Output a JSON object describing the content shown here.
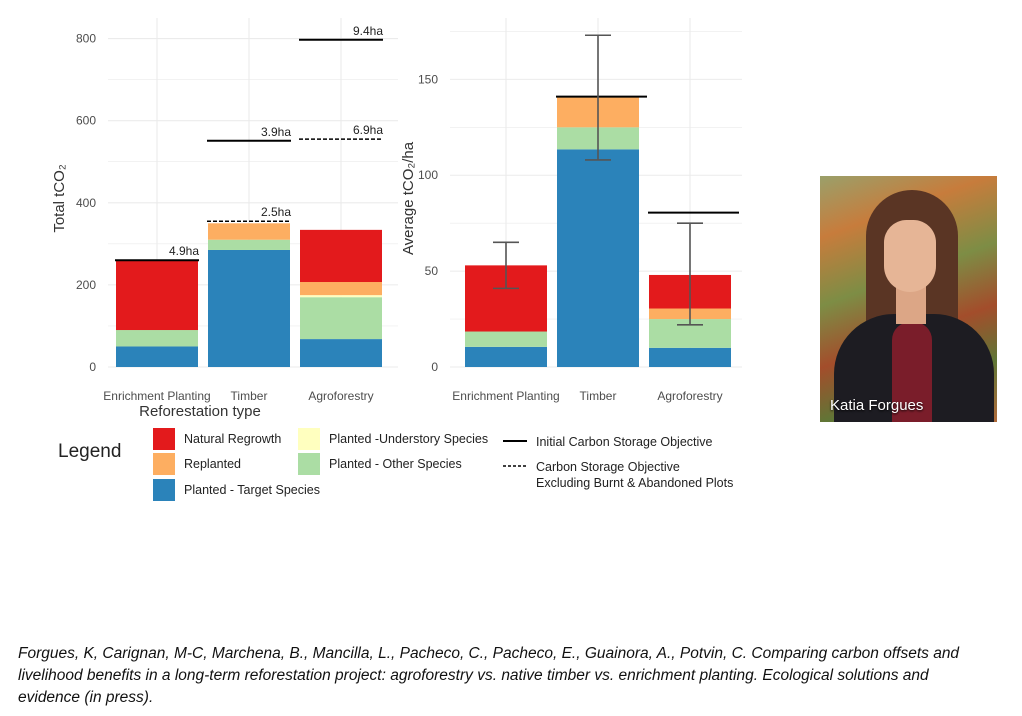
{
  "chart_data": [
    {
      "type": "bar",
      "stacked": true,
      "categories": [
        "Enrichment Planting",
        "Timber",
        "Agroforestry"
      ],
      "series": [
        {
          "name": "Planted - Target Species",
          "values": [
            50,
            285,
            68
          ]
        },
        {
          "name": "Planted - Other Species",
          "values": [
            40,
            25,
            102
          ]
        },
        {
          "name": "Planted - Understory Species",
          "values": [
            0,
            0,
            5
          ]
        },
        {
          "name": "Replanted",
          "values": [
            0,
            40,
            32
          ]
        },
        {
          "name": "Natural Regrowth",
          "values": [
            170,
            0,
            127
          ]
        }
      ],
      "objective_lines": [
        {
          "category": "Enrichment Planting",
          "style": "solid",
          "value": 260,
          "label": "4.9ha"
        },
        {
          "category": "Timber",
          "style": "solid",
          "value": 551,
          "label": "3.9ha"
        },
        {
          "category": "Timber",
          "style": "dashed",
          "value": 355,
          "label": "2.5ha"
        },
        {
          "category": "Agroforestry",
          "style": "solid",
          "value": 797,
          "label": "9.4ha"
        },
        {
          "category": "Agroforestry",
          "style": "dashed",
          "value": 555,
          "label": "6.9ha"
        }
      ],
      "xlabel": "Reforestation type",
      "ylabel": "Total tCO₂",
      "ylim": [
        0,
        850
      ],
      "yticks": [
        0,
        200,
        400,
        600,
        800
      ],
      "grid": true
    },
    {
      "type": "bar",
      "stacked": true,
      "categories": [
        "Enrichment Planting",
        "Timber",
        "Agroforestry"
      ],
      "series": [
        {
          "name": "Planted - Target Species",
          "values": [
            10.5,
            113.5,
            10
          ]
        },
        {
          "name": "Planted - Other Species",
          "values": [
            8,
            11.5,
            15
          ]
        },
        {
          "name": "Planted - Understory Species",
          "values": [
            0,
            0,
            0
          ]
        },
        {
          "name": "Replanted",
          "values": [
            0,
            16,
            5.5
          ]
        },
        {
          "name": "Natural Regrowth",
          "values": [
            34.5,
            0,
            17.5
          ]
        }
      ],
      "objective_lines": [
        {
          "category": "Timber",
          "style": "solid",
          "value": 141
        },
        {
          "category": "Agroforestry",
          "style": "solid",
          "value": 80.5
        }
      ],
      "error_bars": [
        {
          "category": "Enrichment Planting",
          "low": 41,
          "high": 65
        },
        {
          "category": "Timber",
          "low": 108,
          "high": 173
        },
        {
          "category": "Agroforestry",
          "low": 22,
          "high": 75
        }
      ],
      "xlabel": "Reforestation type",
      "ylabel": "Average tCO₂/ha",
      "ylim": [
        0,
        182
      ],
      "yticks": [
        0,
        50,
        100,
        150
      ],
      "grid": true
    }
  ],
  "legend": {
    "title": "Legend",
    "items": [
      {
        "key": "Natural Regrowth",
        "label": "Natural Regrowth",
        "color": "#e31a1c"
      },
      {
        "key": "Replanted",
        "label": "Replanted",
        "color": "#fdae61"
      },
      {
        "key": "Planted - Target Species",
        "label": "Planted - Target Species",
        "color": "#2b83ba"
      },
      {
        "key": "Planted - Understory Species",
        "label": "Planted -Understory Species",
        "color": "#ffffbf"
      },
      {
        "key": "Planted - Other Species",
        "label": "Planted - Other Species",
        "color": "#abdda4"
      }
    ],
    "line_items": [
      {
        "label": "Initial Carbon Storage Objective",
        "style": "solid"
      },
      {
        "label": "Carbon Storage Objective",
        "label2": "Excluding Burnt & Abandoned Plots",
        "style": "dashed"
      }
    ]
  },
  "photo": {
    "caption": "Katia Forgues"
  },
  "citation": "Forgues, K, Carignan, M-C, Marchena, B., Mancilla, L., Pacheco, C., Pacheco, E., Guainora, A., Potvin, C. Comparing carbon offsets and livelihood benefits in a long-term reforestation project: agroforestry vs. native timber vs. enrichment planting. Ecological solutions and evidence (in press)."
}
